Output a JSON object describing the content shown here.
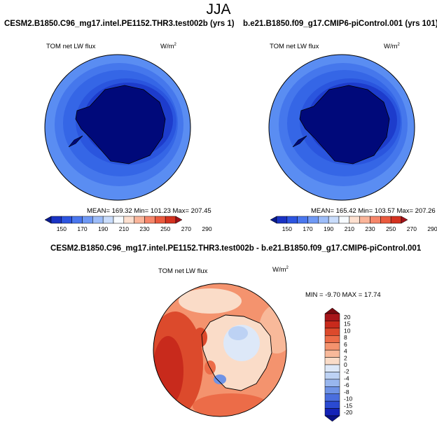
{
  "title": "JJA",
  "panels": [
    {
      "case": "CESM2.B1850.C96_mg17.intel.PE1152.THR3.test002b (yrs 1)",
      "variable": "TOM net LW flux",
      "units": "W/m",
      "units_exp": "2",
      "stats": "MEAN= 169.32  Min= 101.23  Max= 207.45",
      "cbar_labels": [
        "150",
        "170",
        "190",
        "210",
        "230",
        "250",
        "270",
        "290"
      ]
    },
    {
      "case": "b.e21.B1850.f09_g17.CMIP6-piControl.001 (yrs 101)",
      "variable": "TOM net LW flux",
      "units": "W/m",
      "units_exp": "2",
      "stats": "MEAN= 165.42  Min= 103.57  Max= 207.26",
      "cbar_labels": [
        "150",
        "170",
        "190",
        "210",
        "230",
        "250",
        "270",
        "290"
      ]
    }
  ],
  "diff": {
    "title": "CESM2.B1850.C96_mg17.intel.PE1152.THR3.test002b - b.e21.B1850.f09_g17.CMIP6-piControl.001",
    "variable": "TOM net LW flux",
    "units": "W/m",
    "units_exp": "2",
    "stats": "MIN = -9.70 MAX = 17.74",
    "cbar_labels": [
      "20",
      "15",
      "10",
      "8",
      "6",
      "4",
      "2",
      "0",
      "-2",
      "-4",
      "-6",
      "-8",
      "-10",
      "-15",
      "-20"
    ]
  },
  "colors": {
    "abs_scale": [
      "#0a1a8c",
      "#1a33c4",
      "#2d55e0",
      "#4a77ee",
      "#6f99f5",
      "#9dbdf9",
      "#c9dcfb",
      "#f7fbff",
      "#fde0d0",
      "#fbb59a",
      "#f6866a",
      "#ea5a3e",
      "#d43220",
      "#a3121a"
    ],
    "diff_scale": [
      "#7a0a10",
      "#a8151a",
      "#c82a1c",
      "#dc4a2c",
      "#ec6c48",
      "#f4936e",
      "#f8b99a",
      "#fadcc8",
      "#dde8f8",
      "#bdd2f4",
      "#98b6ee",
      "#6f93e6",
      "#4a6ede",
      "#2a4ad2",
      "#1423b8",
      "#0a1288"
    ],
    "land": "#00097a",
    "ocean_far": "#5a8df2"
  }
}
